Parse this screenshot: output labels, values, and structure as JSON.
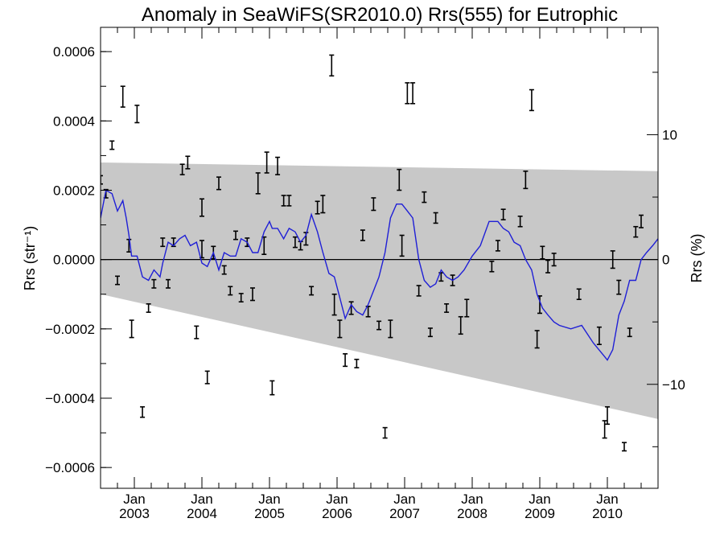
{
  "chart_data": {
    "type": "line",
    "title": "Anomaly in SeaWiFS(SR2010.0) Rrs(555) for Eutrophic",
    "ylabel_left": "Rrs (str⁻¹)",
    "ylabel_right": "Rrs (%)",
    "xlim": [
      2002.5,
      2010.75
    ],
    "ylim": [
      -0.00066,
      0.00067
    ],
    "right_ylim": [
      -18.33,
      18.6
    ],
    "grid": false,
    "zero_line": true,
    "x_ticks": [
      {
        "x": 2003.0,
        "month": "Jan",
        "year": "2003"
      },
      {
        "x": 2004.0,
        "month": "Jan",
        "year": "2004"
      },
      {
        "x": 2005.0,
        "month": "Jan",
        "year": "2005"
      },
      {
        "x": 2006.0,
        "month": "Jan",
        "year": "2006"
      },
      {
        "x": 2007.0,
        "month": "Jan",
        "year": "2007"
      },
      {
        "x": 2008.0,
        "month": "Jan",
        "year": "2008"
      },
      {
        "x": 2009.0,
        "month": "Jan",
        "year": "2009"
      },
      {
        "x": 2010.0,
        "month": "Jan",
        "year": "2010"
      }
    ],
    "y_ticks_left": [
      {
        "v": 0.0006,
        "label": "0.0006"
      },
      {
        "v": 0.0004,
        "label": "0.0004"
      },
      {
        "v": 0.0002,
        "label": "0.0002"
      },
      {
        "v": 0.0,
        "label": "0.0000"
      },
      {
        "v": -0.0002,
        "label": "−0.0002"
      },
      {
        "v": -0.0004,
        "label": "−0.0004"
      },
      {
        "v": -0.0006,
        "label": "−0.0006"
      }
    ],
    "y_ticks_right": [
      {
        "v": 10,
        "label": "10"
      },
      {
        "v": 0,
        "label": "0"
      },
      {
        "v": -10,
        "label": "−10"
      }
    ],
    "band": {
      "color": "#c8c8c8",
      "upper": [
        [
          2002.5,
          0.00028
        ],
        [
          2010.75,
          0.000255
        ]
      ],
      "lower": [
        [
          2002.5,
          -0.0001
        ],
        [
          2010.75,
          -0.00046
        ]
      ]
    },
    "series": [
      {
        "type": "errorbars",
        "color": "#000000",
        "points": [
          [
            2002.5,
            0.00023,
            1.2e-05
          ],
          [
            2002.58,
            0.00019,
            1.2e-05
          ],
          [
            2002.67,
            0.00033,
            1.2e-05
          ],
          [
            2002.75,
            -6e-05,
            1.2e-05
          ],
          [
            2002.83,
            0.00047,
            3e-05
          ],
          [
            2002.92,
            4e-05,
            1.8e-05
          ],
          [
            2002.96,
            -0.0002,
            2.5e-05
          ],
          [
            2003.04,
            0.00042,
            2.5e-05
          ],
          [
            2003.12,
            -0.00044,
            1.5e-05
          ],
          [
            2003.21,
            -0.00014,
            1.2e-05
          ],
          [
            2003.29,
            -7e-05,
            1.2e-05
          ],
          [
            2003.42,
            5e-05,
            1.2e-05
          ],
          [
            2003.5,
            -7e-05,
            1.2e-05
          ],
          [
            2003.58,
            5e-05,
            1.2e-05
          ],
          [
            2003.71,
            0.00026,
            1.5e-05
          ],
          [
            2003.79,
            0.00028,
            1.8e-05
          ],
          [
            2003.92,
            -0.00021,
            1.8e-05
          ],
          [
            2004.0,
            3e-05,
            2.5e-05
          ],
          [
            2004.0,
            0.00015,
            2.5e-05
          ],
          [
            2004.08,
            -0.00034,
            1.8e-05
          ],
          [
            2004.17,
            2e-05,
            1.8e-05
          ],
          [
            2004.25,
            0.00022,
            1.8e-05
          ],
          [
            2004.33,
            -3e-05,
            1.2e-05
          ],
          [
            2004.42,
            -9e-05,
            1.2e-05
          ],
          [
            2004.5,
            7e-05,
            1.2e-05
          ],
          [
            2004.58,
            -0.00011,
            1.2e-05
          ],
          [
            2004.67,
            5e-05,
            1.2e-05
          ],
          [
            2004.75,
            -0.0001,
            1.8e-05
          ],
          [
            2004.83,
            0.00022,
            3e-05
          ],
          [
            2004.92,
            4e-05,
            2.5e-05
          ],
          [
            2004.96,
            0.00028,
            3e-05
          ],
          [
            2005.04,
            -0.00037,
            2e-05
          ],
          [
            2005.12,
            0.00027,
            2.5e-05
          ],
          [
            2005.21,
            0.00017,
            1.5e-05
          ],
          [
            2005.29,
            0.00017,
            1.5e-05
          ],
          [
            2005.38,
            5e-05,
            1.5e-05
          ],
          [
            2005.46,
            4e-05,
            1.2e-05
          ],
          [
            2005.54,
            6e-05,
            1.8e-05
          ],
          [
            2005.62,
            -9e-05,
            1.2e-05
          ],
          [
            2005.71,
            0.00015,
            1.8e-05
          ],
          [
            2005.79,
            0.00016,
            2.5e-05
          ],
          [
            2005.92,
            0.00056,
            3e-05
          ],
          [
            2005.96,
            -0.00013,
            3e-05
          ],
          [
            2006.04,
            -0.0002,
            2.5e-05
          ],
          [
            2006.12,
            -0.00029,
            1.8e-05
          ],
          [
            2006.21,
            -0.00014,
            1.8e-05
          ],
          [
            2006.29,
            -0.0003,
            1.2e-05
          ],
          [
            2006.38,
            7e-05,
            1.5e-05
          ],
          [
            2006.46,
            -0.00015,
            1.5e-05
          ],
          [
            2006.54,
            0.00016,
            1.8e-05
          ],
          [
            2006.62,
            -0.00019,
            1.2e-05
          ],
          [
            2006.71,
            -0.0005,
            1.5e-05
          ],
          [
            2006.79,
            -0.0002,
            2.5e-05
          ],
          [
            2006.92,
            0.00023,
            3e-05
          ],
          [
            2006.96,
            4e-05,
            3e-05
          ],
          [
            2007.04,
            0.00048,
            3e-05
          ],
          [
            2007.12,
            0.00048,
            3e-05
          ],
          [
            2007.21,
            -9e-05,
            1.5e-05
          ],
          [
            2007.29,
            0.00018,
            1.5e-05
          ],
          [
            2007.38,
            -0.00021,
            1.2e-05
          ],
          [
            2007.46,
            0.00012,
            1.5e-05
          ],
          [
            2007.54,
            -5e-05,
            1.2e-05
          ],
          [
            2007.62,
            -0.00014,
            1.2e-05
          ],
          [
            2007.71,
            -6e-05,
            1.5e-05
          ],
          [
            2007.83,
            -0.00019,
            2.5e-05
          ],
          [
            2007.92,
            -0.00014,
            2.5e-05
          ],
          [
            2008.29,
            -2e-05,
            1.5e-05
          ],
          [
            2008.38,
            4e-05,
            1.5e-05
          ],
          [
            2008.46,
            0.00013,
            1.5e-05
          ],
          [
            2008.71,
            0.00011,
            1.5e-05
          ],
          [
            2008.79,
            0.00023,
            2.5e-05
          ],
          [
            2008.88,
            0.00046,
            3e-05
          ],
          [
            2008.96,
            -0.00023,
            2.5e-05
          ],
          [
            2009.0,
            -0.00013,
            2.5e-05
          ],
          [
            2009.04,
            2e-05,
            1.8e-05
          ],
          [
            2009.12,
            -2e-05,
            1.8e-05
          ],
          [
            2009.21,
            0.0,
            1.8e-05
          ],
          [
            2009.58,
            -0.0001,
            1.5e-05
          ],
          [
            2009.88,
            -0.00022,
            2.5e-05
          ],
          [
            2009.96,
            -0.00049,
            2.5e-05
          ],
          [
            2010.0,
            -0.00045,
            2.5e-05
          ],
          [
            2010.08,
            0.0,
            2.5e-05
          ],
          [
            2010.17,
            -8e-05,
            2e-05
          ],
          [
            2010.25,
            -0.00054,
            1.2e-05
          ],
          [
            2010.33,
            -0.00021,
            1.2e-05
          ],
          [
            2010.42,
            8e-05,
            1.5e-05
          ],
          [
            2010.5,
            0.00011,
            1.8e-05
          ]
        ]
      },
      {
        "type": "line",
        "color": "#1f1fd6",
        "x": [
          2002.5,
          2002.58,
          2002.67,
          2002.75,
          2002.83,
          2002.88,
          2002.92,
          2002.96,
          2003.04,
          2003.12,
          2003.21,
          2003.29,
          2003.38,
          2003.42,
          2003.5,
          2003.58,
          2003.67,
          2003.75,
          2003.83,
          2003.92,
          2004.0,
          2004.08,
          2004.17,
          2004.25,
          2004.33,
          2004.42,
          2004.5,
          2004.58,
          2004.67,
          2004.75,
          2004.83,
          2004.92,
          2005.0,
          2005.04,
          2005.12,
          2005.21,
          2005.29,
          2005.38,
          2005.46,
          2005.54,
          2005.62,
          2005.71,
          2005.79,
          2005.88,
          2005.96,
          2006.04,
          2006.12,
          2006.21,
          2006.29,
          2006.38,
          2006.46,
          2006.54,
          2006.62,
          2006.71,
          2006.79,
          2006.88,
          2006.96,
          2007.04,
          2007.12,
          2007.21,
          2007.29,
          2007.38,
          2007.46,
          2007.54,
          2007.62,
          2007.71,
          2007.79,
          2007.88,
          2008.0,
          2008.12,
          2008.25,
          2008.38,
          2008.46,
          2008.54,
          2008.62,
          2008.71,
          2008.79,
          2008.88,
          2008.96,
          2009.04,
          2009.12,
          2009.21,
          2009.29,
          2009.46,
          2009.62,
          2009.79,
          2009.96,
          2010.0,
          2010.08,
          2010.17,
          2010.25,
          2010.33,
          2010.42,
          2010.5,
          2010.58,
          2010.67,
          2010.75
        ],
        "y": [
          0.00012,
          0.0002,
          0.00019,
          0.00014,
          0.00017,
          0.00012,
          7e-05,
          1e-05,
          1e-05,
          -5e-05,
          -6e-05,
          -3e-05,
          -5e-05,
          -1e-05,
          5e-05,
          4e-05,
          6e-05,
          7e-05,
          4e-05,
          5e-05,
          -1e-05,
          -2e-05,
          2e-05,
          -3e-05,
          2e-05,
          1e-05,
          1e-05,
          6e-05,
          5e-05,
          2e-05,
          2e-05,
          8e-05,
          0.00011,
          9e-05,
          9e-05,
          6e-05,
          9e-05,
          8e-05,
          5e-05,
          7e-05,
          0.00013,
          8e-05,
          2e-05,
          -4e-05,
          -5e-05,
          -0.00011,
          -0.00017,
          -0.00013,
          -0.00015,
          -0.00016,
          -0.00013,
          -9e-05,
          -5e-05,
          2e-05,
          0.00012,
          0.00016,
          0.00016,
          0.00014,
          0.00012,
          0.0,
          -6e-05,
          -8e-05,
          -7e-05,
          -3e-05,
          -5e-05,
          -6e-05,
          -5e-05,
          -3e-05,
          1e-05,
          4e-05,
          0.00011,
          0.00011,
          9e-05,
          8e-05,
          5e-05,
          4e-05,
          0.0,
          -3e-05,
          -0.0001,
          -0.00014,
          -0.00016,
          -0.00018,
          -0.00019,
          -0.0002,
          -0.00019,
          -0.00024,
          -0.00028,
          -0.00029,
          -0.00026,
          -0.00016,
          -0.00012,
          -6e-05,
          -6e-05,
          0.0,
          2e-05,
          4e-05,
          6e-05
        ]
      }
    ]
  }
}
